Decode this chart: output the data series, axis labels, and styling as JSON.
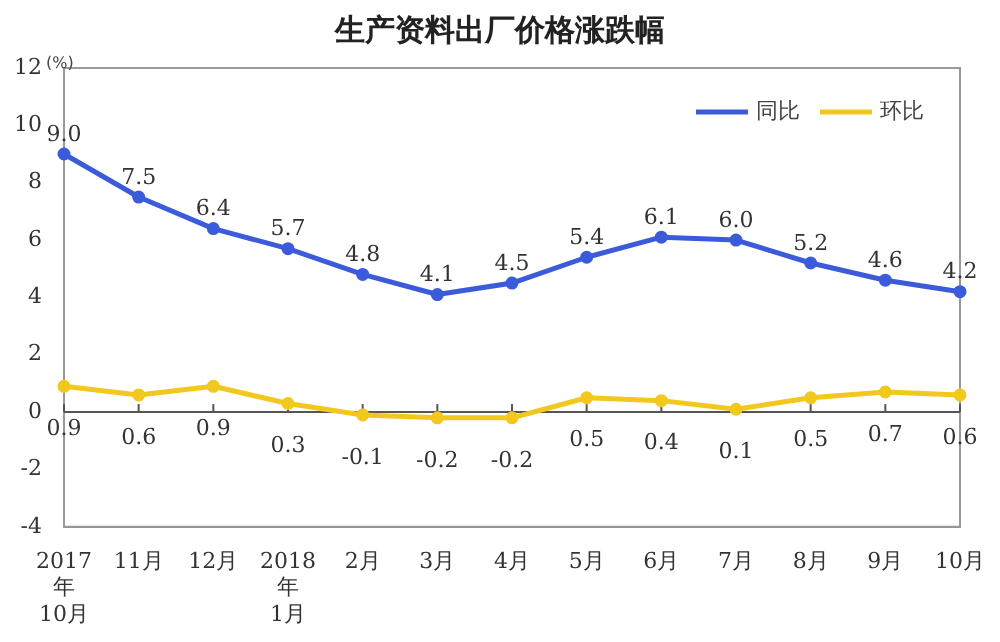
{
  "chart_data": {
    "type": "line",
    "title": "生产资料出厂价格涨跌幅",
    "ylabel": "(%)",
    "categories": [
      "2017\n年\n10月",
      "11月",
      "12月",
      "2018\n年\n1月",
      "2月",
      "3月",
      "4月",
      "5月",
      "6月",
      "7月",
      "8月",
      "9月",
      "10月"
    ],
    "series": [
      {
        "name": "同比",
        "color": "#3b5bdb",
        "values": [
          9.0,
          7.5,
          6.4,
          5.7,
          4.8,
          4.1,
          4.5,
          5.4,
          6.1,
          6.0,
          5.2,
          4.6,
          4.2
        ],
        "value_labels": [
          "9.0",
          "7.5",
          "6.4",
          "5.7",
          "4.8",
          "4.1",
          "4.5",
          "5.4",
          "6.1",
          "6.0",
          "5.2",
          "4.6",
          "4.2"
        ]
      },
      {
        "name": "环比",
        "color": "#f2c81e",
        "values": [
          0.9,
          0.6,
          0.9,
          0.3,
          -0.1,
          -0.2,
          -0.2,
          0.5,
          0.4,
          0.1,
          0.5,
          0.7,
          0.6
        ],
        "value_labels": [
          "0.9",
          "0.6",
          "0.9",
          "0.3",
          "-0.1",
          "-0.2",
          "-0.2",
          "0.5",
          "0.4",
          "0.1",
          "0.5",
          "0.7",
          "0.6"
        ]
      }
    ],
    "ylim": [
      -4,
      12
    ],
    "yticks": [
      -4,
      -2,
      0,
      2,
      4,
      6,
      8,
      10,
      12
    ],
    "legend": "top right",
    "marker": "circle",
    "line_style": "solid"
  }
}
